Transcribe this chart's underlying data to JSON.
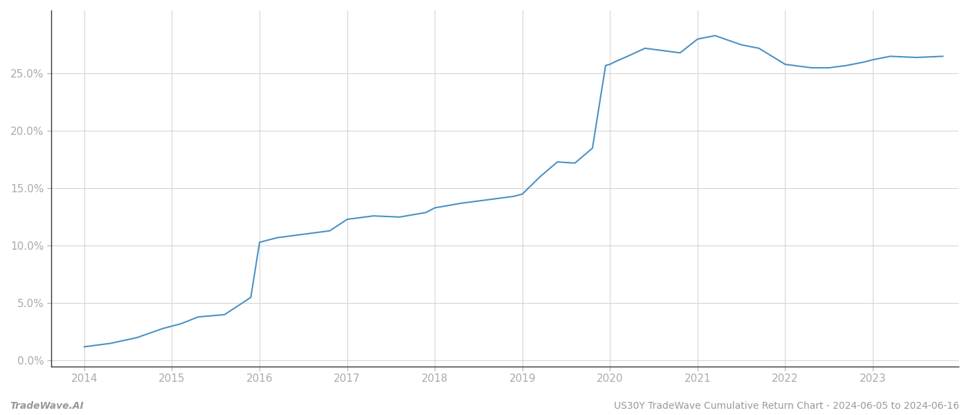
{
  "x": [
    2014.0,
    2014.3,
    2014.6,
    2014.9,
    2015.1,
    2015.3,
    2015.6,
    2015.9,
    2016.0,
    2016.2,
    2016.5,
    2016.8,
    2017.0,
    2017.3,
    2017.6,
    2017.9,
    2018.0,
    2018.3,
    2018.6,
    2018.9,
    2019.0,
    2019.2,
    2019.4,
    2019.6,
    2019.8,
    2019.95,
    2020.0,
    2020.05,
    2020.2,
    2020.4,
    2020.6,
    2020.8,
    2021.0,
    2021.2,
    2021.5,
    2021.7,
    2022.0,
    2022.3,
    2022.5,
    2022.7,
    2022.9,
    2023.0,
    2023.2,
    2023.5,
    2023.8
  ],
  "y": [
    1.2,
    1.5,
    2.0,
    2.8,
    3.2,
    3.8,
    4.0,
    5.5,
    10.3,
    10.7,
    11.0,
    11.3,
    12.3,
    12.6,
    12.5,
    12.9,
    13.3,
    13.7,
    14.0,
    14.3,
    14.5,
    16.0,
    17.3,
    17.2,
    18.5,
    25.7,
    25.8,
    26.0,
    26.5,
    27.2,
    27.0,
    26.8,
    28.0,
    28.3,
    27.5,
    27.2,
    25.8,
    25.5,
    25.5,
    25.7,
    26.0,
    26.2,
    26.5,
    26.4,
    26.5
  ],
  "line_color": "#4a90c4",
  "line_width": 1.5,
  "bg_color": "#ffffff",
  "grid_color": "#d0d0d0",
  "footer_left": "TradeWave.AI",
  "footer_right": "US30Y TradeWave Cumulative Return Chart - 2024-06-05 to 2024-06-16",
  "yticks": [
    0.0,
    5.0,
    10.0,
    15.0,
    20.0,
    25.0
  ],
  "xticks": [
    2014,
    2015,
    2016,
    2017,
    2018,
    2019,
    2020,
    2021,
    2022,
    2023
  ],
  "xlim": [
    2013.62,
    2023.98
  ],
  "ylim": [
    -0.5,
    30.5
  ],
  "tick_color": "#aaaaaa",
  "label_color": "#999999",
  "footer_color": "#999999",
  "spine_color": "#333333",
  "tick_fontsize": 11,
  "footer_fontsize": 10
}
